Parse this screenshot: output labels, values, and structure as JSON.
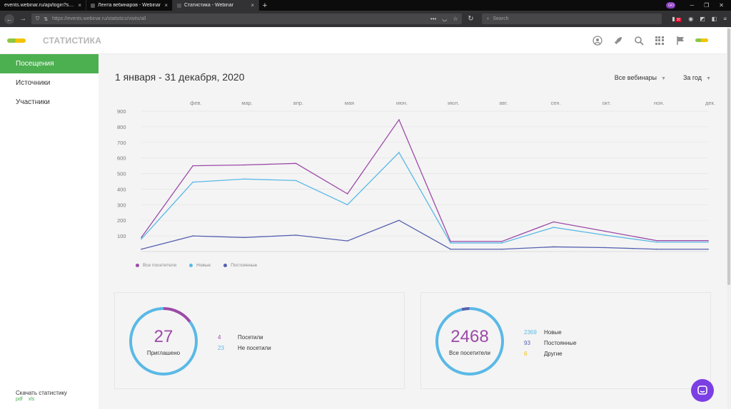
{
  "browser": {
    "tabs": [
      {
        "label": "events.webinar.ru/api/login?sessi",
        "active": false
      },
      {
        "label": "Лента вебинаров - Webinar",
        "active": false
      },
      {
        "label": "Статистика - Webinar",
        "active": true
      }
    ],
    "url": "https://events.webinar.ru/statistics/visits/all",
    "search_placeholder": "Search",
    "profile_initials": "GO",
    "ext_badge": "30"
  },
  "header": {
    "title": "СТАТИСТИКА"
  },
  "sidebar": {
    "items": [
      {
        "label": "Посещения",
        "active": true
      },
      {
        "label": "Источники",
        "active": false
      },
      {
        "label": "Участники",
        "active": false
      }
    ],
    "download_label": "Скачать статистику",
    "pdf": "pdf",
    "xls": "xls"
  },
  "main": {
    "date_range": "1 января - 31 декабря, 2020",
    "filter_webinars": "Все вебинары",
    "filter_period": "За год"
  },
  "chart_data": {
    "type": "line",
    "title": "",
    "categories": [
      "",
      "фев.",
      "мар.",
      "апр.",
      "мая",
      "июн.",
      "июл.",
      "авг.",
      "сен.",
      "окт.",
      "ноя.",
      "дек."
    ],
    "yticks": [
      100,
      200,
      300,
      400,
      500,
      600,
      700,
      800,
      900
    ],
    "ylim": [
      0,
      900
    ],
    "series": [
      {
        "name": "Все посетители",
        "color": "#9c4aa8",
        "values": [
          90,
          550,
          555,
          565,
          370,
          845,
          65,
          65,
          190,
          130,
          70,
          70
        ]
      },
      {
        "name": "Новые",
        "color": "#5ab9e6",
        "values": [
          80,
          445,
          465,
          455,
          300,
          635,
          55,
          55,
          155,
          105,
          60,
          60
        ]
      },
      {
        "name": "Постоянные",
        "color": "#5660b0",
        "values": [
          15,
          100,
          90,
          105,
          68,
          200,
          15,
          15,
          30,
          25,
          15,
          15
        ]
      }
    ]
  },
  "cards": {
    "invited": {
      "total": "27",
      "label": "Приглашено",
      "rows": [
        {
          "value": "4",
          "label": "Посетили",
          "color": "#9c4aa8"
        },
        {
          "value": "23",
          "label": "Не посетили",
          "color": "#5ab9e6"
        }
      ],
      "shares": [
        4,
        23
      ]
    },
    "visitors": {
      "total": "2468",
      "label": "Все посетители",
      "rows": [
        {
          "value": "2369",
          "label": "Новые",
          "color": "#5ab9e6"
        },
        {
          "value": "93",
          "label": "Постоянные",
          "color": "#5660b0"
        },
        {
          "value": "6",
          "label": "Другие",
          "color": "#f3c300"
        }
      ],
      "shares": [
        2369,
        93,
        6
      ]
    }
  },
  "colors": {
    "accent": "#4caf50",
    "purple": "#9c4aa8",
    "blue": "#5ab9e6",
    "navy": "#5660b0"
  }
}
